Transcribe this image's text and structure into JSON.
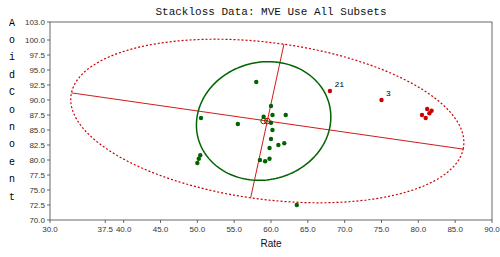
{
  "chart_data": {
    "type": "scatter",
    "title": "Stackloss Data:  MVE Use All Subsets",
    "xlabel": "Rate",
    "ylabel_letters": [
      "A",
      "o",
      "i",
      "d",
      "C",
      "o",
      "n",
      "o",
      "e",
      "n",
      "t"
    ],
    "xlim": [
      30.0,
      90.0
    ],
    "ylim": [
      70.0,
      103.0
    ],
    "xticks": [
      {
        "value": 30.0,
        "label": "30.0"
      },
      {
        "value": 37.5,
        "label": "37.5"
      },
      {
        "value": 40.0,
        "label": "40.0"
      },
      {
        "value": 45.0,
        "label": "45.0"
      },
      {
        "value": 50.0,
        "label": "50.0"
      },
      {
        "value": 55.0,
        "label": "55.0"
      },
      {
        "value": 60.0,
        "label": "60.0"
      },
      {
        "value": 65.0,
        "label": "65.0"
      },
      {
        "value": 70.0,
        "label": "70.0"
      },
      {
        "value": 75.0,
        "label": "75.0"
      },
      {
        "value": 80.0,
        "label": "80.0"
      },
      {
        "value": 85.0,
        "label": "85.0"
      },
      {
        "value": 90.0,
        "label": "90.0"
      }
    ],
    "yticks": [
      {
        "value": 70.0,
        "label": "70.0"
      },
      {
        "value": 72.5,
        "label": "72.5"
      },
      {
        "value": 75.0,
        "label": "75.0"
      },
      {
        "value": 77.5,
        "label": "77.5"
      },
      {
        "value": 80.0,
        "label": "80.0"
      },
      {
        "value": 82.5,
        "label": "82.5"
      },
      {
        "value": 85.0,
        "label": "85.0"
      },
      {
        "value": 87.5,
        "label": "87.5"
      },
      {
        "value": 90.0,
        "label": "90.0"
      },
      {
        "value": 92.5,
        "label": "92.5"
      },
      {
        "value": 95.0,
        "label": "95.0"
      },
      {
        "value": 97.5,
        "label": "97.5"
      },
      {
        "value": 100.0,
        "label": "100.0"
      },
      {
        "value": 103.0,
        "label": "103.0"
      }
    ],
    "grid": false,
    "series": [
      {
        "color": "#006400",
        "x": [
          50.0,
          50.2,
          50.4,
          50.5,
          55.5,
          58.0,
          58.5,
          59.2,
          59.8,
          60.0,
          60.2,
          60.0,
          60.2,
          60.0,
          59.8,
          61.0,
          61.8,
          62.0,
          63.5,
          59.0
        ],
        "values": [
          79.5,
          80.2,
          80.8,
          87.0,
          86.0,
          93.0,
          80.0,
          79.8,
          80.2,
          89.0,
          87.5,
          86.2,
          85.0,
          83.5,
          82.0,
          82.5,
          82.8,
          87.5,
          72.5,
          87.2
        ]
      },
      {
        "color": "#cc0000",
        "x": [
          68.0,
          75.0,
          80.5,
          81.0,
          81.5,
          81.2,
          81.8
        ],
        "values": [
          91.5,
          90.0,
          87.5,
          87.0,
          87.8,
          88.5,
          88.2
        ]
      }
    ],
    "ellipses": [
      {
        "cx": 59.5,
        "cy": 86.5,
        "width": 54.0,
        "height": 26.0,
        "angle": -10,
        "color": "#cc0000",
        "line_style": "dotted",
        "crosshair": true
      },
      {
        "cx": 59.0,
        "cy": 86.5,
        "width": 18.0,
        "height": 20.0,
        "angle": -20,
        "color": "#006400",
        "line_style": "solid",
        "crosshair": false
      }
    ],
    "annotations": [
      {
        "x": 68.2,
        "y": 91.8,
        "text": "21"
      },
      {
        "x": 75.2,
        "y": 90.3,
        "text": "3"
      }
    ]
  }
}
